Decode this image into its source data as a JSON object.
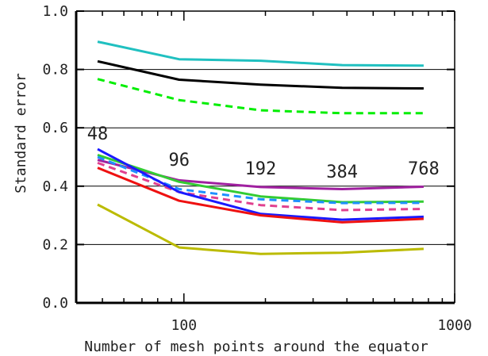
{
  "chart_data": {
    "type": "line",
    "title": "",
    "xlabel": "Number of mesh points around the equator",
    "ylabel": "Standard error",
    "x_scale": "log",
    "xlim": [
      40,
      1000
    ],
    "ylim": [
      0.0,
      1.0
    ],
    "x_ticks": [
      {
        "value": 100,
        "label": "100"
      },
      {
        "value": 1000,
        "label": "1000"
      }
    ],
    "y_ticks": [
      {
        "value": 0.0,
        "label": "0.0"
      },
      {
        "value": 0.2,
        "label": "0.2"
      },
      {
        "value": 0.4,
        "label": "0.4"
      },
      {
        "value": 0.6,
        "label": "0.6"
      },
      {
        "value": 0.8,
        "label": "0.8"
      },
      {
        "value": 1.0,
        "label": "1.0"
      }
    ],
    "grid_y": [
      0.2,
      0.4,
      0.6,
      0.8
    ],
    "legend": "none",
    "x": [
      48,
      96,
      192,
      384,
      768
    ],
    "annotations": [
      {
        "text": "48",
        "x": 48,
        "y": 0.56
      },
      {
        "text": "96",
        "x": 96,
        "y": 0.47
      },
      {
        "text": "192",
        "x": 192,
        "y": 0.44
      },
      {
        "text": "384",
        "x": 384,
        "y": 0.43
      },
      {
        "text": "768",
        "x": 768,
        "y": 0.44
      }
    ],
    "series": [
      {
        "color": "#20c0c0",
        "dash": "solid",
        "values": [
          0.895,
          0.835,
          0.83,
          0.815,
          0.813
        ]
      },
      {
        "color": "#000000",
        "dash": "solid",
        "values": [
          0.828,
          0.765,
          0.748,
          0.737,
          0.735
        ]
      },
      {
        "color": "#00ee00",
        "dash": "dashed",
        "values": [
          0.767,
          0.695,
          0.66,
          0.65,
          0.65
        ]
      },
      {
        "color": "#a020a0",
        "dash": "solid",
        "values": [
          0.49,
          0.42,
          0.397,
          0.39,
          0.398
        ]
      },
      {
        "color": "#33cc33",
        "dash": "solid",
        "values": [
          0.507,
          0.415,
          0.365,
          0.345,
          0.347
        ]
      },
      {
        "color": "#1e90ff",
        "dash": "dashed",
        "values": [
          0.5,
          0.39,
          0.355,
          0.342,
          0.343
        ]
      },
      {
        "color": "#e0408f",
        "dash": "dashed",
        "values": [
          0.48,
          0.38,
          0.335,
          0.318,
          0.322
        ]
      },
      {
        "color": "#1a1aff",
        "dash": "solid",
        "values": [
          0.527,
          0.38,
          0.305,
          0.285,
          0.295
        ]
      },
      {
        "color": "#ee1111",
        "dash": "solid",
        "values": [
          0.463,
          0.35,
          0.3,
          0.276,
          0.288
        ]
      },
      {
        "color": "#bbbb00",
        "dash": "solid",
        "values": [
          0.337,
          0.19,
          0.168,
          0.172,
          0.185
        ]
      }
    ]
  }
}
